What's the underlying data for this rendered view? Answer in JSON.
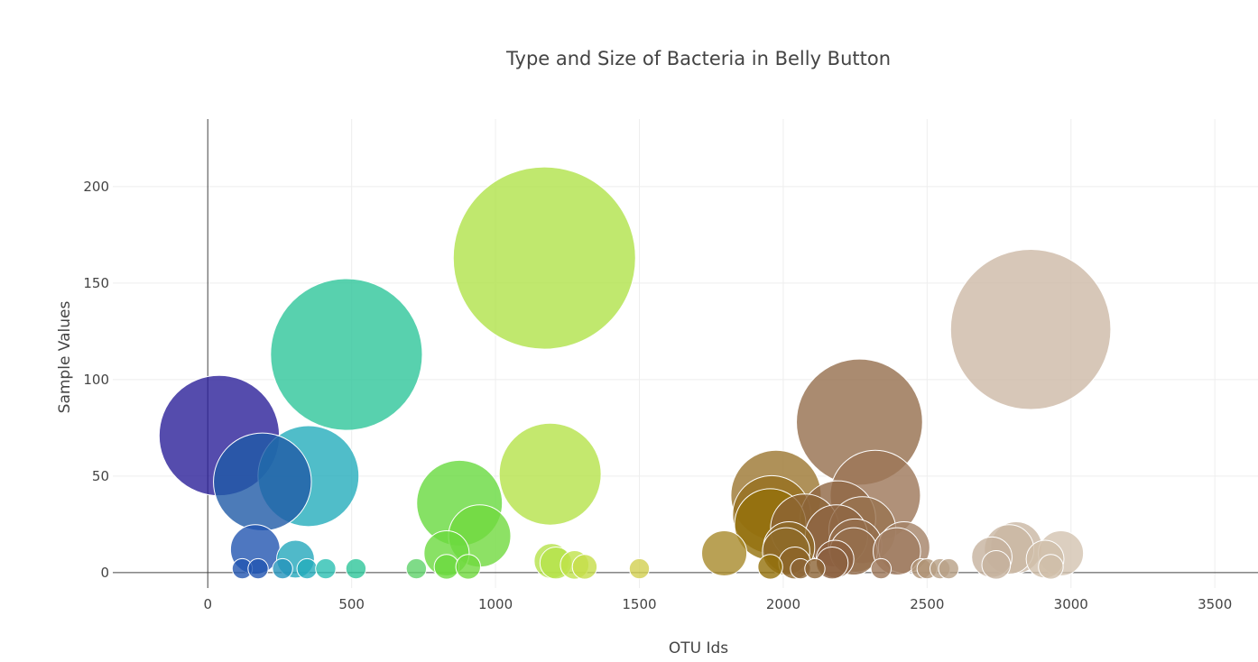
{
  "chart_data": {
    "type": "scatter",
    "subtype": "bubble",
    "title": "Type and Size of Bacteria in Belly Button",
    "xlabel": "OTU Ids",
    "ylabel": "Sample Values",
    "xlim": [
      -330,
      3650
    ],
    "ylim": [
      -8,
      235
    ],
    "xticks": [
      0,
      500,
      1000,
      1500,
      2000,
      2500,
      3000,
      3500
    ],
    "yticks": [
      0,
      50,
      100,
      150,
      200
    ],
    "grid": true,
    "legend": "none",
    "colorscale": "Earth",
    "marker_opacity": 0.8,
    "size_encodes": "Sample Values",
    "color_encodes": "OTU Ids",
    "points": [
      {
        "x": 40,
        "y": 71,
        "color": "#2a1f99"
      },
      {
        "x": 190,
        "y": 47,
        "color": "#1f5aa6"
      },
      {
        "x": 165,
        "y": 12,
        "color": "#2255b0"
      },
      {
        "x": 120,
        "y": 2,
        "color": "#2255b0"
      },
      {
        "x": 175,
        "y": 2,
        "color": "#2255b0"
      },
      {
        "x": 350,
        "y": 50,
        "color": "#24acbb"
      },
      {
        "x": 305,
        "y": 7,
        "color": "#24a8bb"
      },
      {
        "x": 260,
        "y": 2,
        "color": "#2493bb"
      },
      {
        "x": 345,
        "y": 2,
        "color": "#24adbb"
      },
      {
        "x": 410,
        "y": 2,
        "color": "#2bbfb2"
      },
      {
        "x": 482,
        "y": 113,
        "color": "#2ec59a"
      },
      {
        "x": 515,
        "y": 2,
        "color": "#2ec59a"
      },
      {
        "x": 725,
        "y": 2,
        "color": "#5fd26a"
      },
      {
        "x": 875,
        "y": 36,
        "color": "#68d93f"
      },
      {
        "x": 830,
        "y": 10,
        "color": "#6cd93f"
      },
      {
        "x": 945,
        "y": 19,
        "color": "#70d93f"
      },
      {
        "x": 830,
        "y": 3,
        "color": "#6cd93f"
      },
      {
        "x": 905,
        "y": 3,
        "color": "#70d93f"
      },
      {
        "x": 1170,
        "y": 163,
        "color": "#b0e24a"
      },
      {
        "x": 1190,
        "y": 51,
        "color": "#b5e24a"
      },
      {
        "x": 1195,
        "y": 6,
        "color": "#b5e24a"
      },
      {
        "x": 1210,
        "y": 5,
        "color": "#b5e24a"
      },
      {
        "x": 1275,
        "y": 4,
        "color": "#bfe24a"
      },
      {
        "x": 1310,
        "y": 3,
        "color": "#c5dd48"
      },
      {
        "x": 1500,
        "y": 2,
        "color": "#d2cf50"
      },
      {
        "x": 1795,
        "y": 10,
        "color": "#a8892a"
      },
      {
        "x": 1975,
        "y": 40,
        "color": "#9b7530"
      },
      {
        "x": 1960,
        "y": 30,
        "color": "#966f1e"
      },
      {
        "x": 1955,
        "y": 25,
        "color": "#93700a"
      },
      {
        "x": 1955,
        "y": 3,
        "color": "#93700a"
      },
      {
        "x": 2010,
        "y": 11,
        "color": "#8f6a28"
      },
      {
        "x": 2020,
        "y": 13,
        "color": "#8f6a28"
      },
      {
        "x": 2040,
        "y": 5,
        "color": "#8c6428"
      },
      {
        "x": 2075,
        "y": 23,
        "color": "#8c6436"
      },
      {
        "x": 2060,
        "y": 2,
        "color": "#8c6436"
      },
      {
        "x": 2110,
        "y": 2,
        "color": "#8c6436"
      },
      {
        "x": 2190,
        "y": 28,
        "color": "#8f6542"
      },
      {
        "x": 2185,
        "y": 19,
        "color": "#8f6542"
      },
      {
        "x": 2170,
        "y": 5,
        "color": "#8c6040"
      },
      {
        "x": 2180,
        "y": 7,
        "color": "#8c6040"
      },
      {
        "x": 2265,
        "y": 78,
        "color": "#956e4c"
      },
      {
        "x": 2250,
        "y": 14,
        "color": "#956e4c"
      },
      {
        "x": 2245,
        "y": 11,
        "color": "#956e4c"
      },
      {
        "x": 2275,
        "y": 22,
        "color": "#997350"
      },
      {
        "x": 2320,
        "y": 40,
        "color": "#9c7658"
      },
      {
        "x": 2340,
        "y": 2,
        "color": "#9c7658"
      },
      {
        "x": 2395,
        "y": 11,
        "color": "#a07c60"
      },
      {
        "x": 2420,
        "y": 13,
        "color": "#a48266"
      },
      {
        "x": 2480,
        "y": 2,
        "color": "#b09376"
      },
      {
        "x": 2500,
        "y": 2,
        "color": "#b09376"
      },
      {
        "x": 2545,
        "y": 2,
        "color": "#b8a086"
      },
      {
        "x": 2575,
        "y": 2,
        "color": "#b8a086"
      },
      {
        "x": 2725,
        "y": 8,
        "color": "#c6b29e"
      },
      {
        "x": 2740,
        "y": 4,
        "color": "#c6b29e"
      },
      {
        "x": 2785,
        "y": 12,
        "color": "#c9b6a3"
      },
      {
        "x": 2810,
        "y": 13,
        "color": "#c9b6a3"
      },
      {
        "x": 2860,
        "y": 126,
        "color": "#cdb9a6"
      },
      {
        "x": 2910,
        "y": 7,
        "color": "#d0bea9"
      },
      {
        "x": 2930,
        "y": 3,
        "color": "#d0bea9"
      },
      {
        "x": 2965,
        "y": 10,
        "color": "#d3c3b0"
      }
    ]
  }
}
